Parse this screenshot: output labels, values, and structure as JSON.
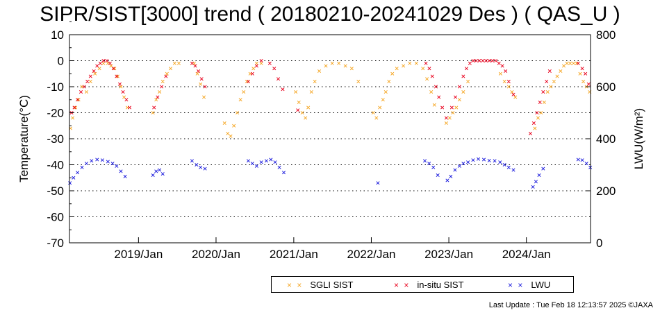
{
  "title": "SIPR/SIST[3000] trend ( 20180210-20241029 Des ) ( QAS_U )",
  "footer": "Last Update : Tue Feb 18 12:13:57 2025  ©JAXA",
  "colors": {
    "sgli": "#f5a623",
    "insitu": "#e8001c",
    "lwu": "#1a1adc",
    "grid": "#000000"
  },
  "chart_data": {
    "type": "scatter",
    "title": "SIPR/SIST[3000] trend ( 20180210-20241029 Des ) ( QAS_U )",
    "xlabel": "",
    "ylabel": "Temperature(°C)",
    "y2label": "LWU(W/m²)",
    "xlim": [
      "2018-02-10",
      "2024-10-29"
    ],
    "ylim": [
      -70,
      10
    ],
    "y2lim": [
      0,
      800
    ],
    "grid": "dotted horizontal",
    "legend_position": "bottom-right",
    "x_ticks": [
      "2019/Jan",
      "2020/Jan",
      "2021/Jan",
      "2022/Jan",
      "2023/Jan",
      "2024/Jan"
    ],
    "x_tick_dates": [
      "2019-01-01",
      "2020-01-01",
      "2021-01-01",
      "2022-01-01",
      "2023-01-01",
      "2024-01-01"
    ],
    "y_ticks": [
      10,
      0,
      -10,
      -20,
      -30,
      -40,
      -50,
      -60,
      -70
    ],
    "y2_ticks": [
      800,
      600,
      400,
      200,
      0
    ],
    "series": [
      {
        "name": "SGLI SIST",
        "axis": "left",
        "marker": "x",
        "x": [
          "2018-02-15",
          "2018-02-25",
          "2018-03-10",
          "2018-03-25",
          "2018-04-10",
          "2018-05-01",
          "2018-05-20",
          "2018-06-10",
          "2018-07-01",
          "2018-07-20",
          "2018-08-10",
          "2018-08-25",
          "2018-09-10",
          "2018-09-25",
          "2018-10-10",
          "2018-10-25",
          "2018-11-10",
          "2019-03-10",
          "2019-03-25",
          "2019-04-10",
          "2019-04-25",
          "2019-05-15",
          "2019-06-01",
          "2019-06-20",
          "2019-07-10",
          "2019-09-20",
          "2019-10-05",
          "2019-10-20",
          "2019-11-05",
          "2020-02-10",
          "2020-02-25",
          "2020-03-10",
          "2020-03-25",
          "2020-04-10",
          "2020-04-25",
          "2020-05-10",
          "2020-05-25",
          "2020-06-10",
          "2020-06-25",
          "2020-07-10",
          "2020-08-01",
          "2021-01-10",
          "2021-01-25",
          "2021-02-10",
          "2021-02-25",
          "2021-03-10",
          "2021-03-25",
          "2021-04-10",
          "2021-05-01",
          "2021-06-01",
          "2021-07-01",
          "2021-08-01",
          "2021-09-01",
          "2021-10-01",
          "2021-11-01",
          "2022-01-10",
          "2022-01-25",
          "2022-02-10",
          "2022-02-25",
          "2022-03-10",
          "2022-03-25",
          "2022-04-10",
          "2022-05-01",
          "2022-06-01",
          "2022-07-01",
          "2022-08-01",
          "2022-09-01",
          "2022-09-20",
          "2022-10-10",
          "2022-10-25",
          "2022-12-20",
          "2023-01-05",
          "2023-01-20",
          "2023-02-05",
          "2023-02-20",
          "2023-03-10",
          "2023-04-01",
          "2023-09-01",
          "2023-09-20",
          "2023-10-10",
          "2023-10-25",
          "2023-11-10",
          "2024-02-10",
          "2024-02-25",
          "2024-03-10",
          "2024-03-25",
          "2024-04-10",
          "2024-04-25",
          "2024-05-10",
          "2024-05-25",
          "2024-06-10",
          "2024-06-25",
          "2024-07-10",
          "2024-07-25",
          "2024-08-10",
          "2024-08-25",
          "2024-09-10",
          "2024-09-25",
          "2024-10-10",
          "2024-10-25"
        ],
        "y": [
          -26,
          -22,
          -18,
          -15,
          -10,
          -12,
          -8,
          -5,
          -3,
          -1,
          -1,
          -2,
          -3,
          -6,
          -10,
          -14,
          -18,
          -20,
          -15,
          -12,
          -8,
          -5,
          -3,
          -1,
          -1,
          -1,
          -5,
          -9,
          -14,
          -24,
          -28,
          -29,
          -25,
          -20,
          -15,
          -12,
          -8,
          -5,
          -3,
          -1,
          -1,
          -12,
          -16,
          -20,
          -22,
          -18,
          -12,
          -8,
          -4,
          -2,
          -1,
          -1,
          -2,
          -3,
          -8,
          -20,
          -22,
          -18,
          -15,
          -12,
          -8,
          -5,
          -3,
          -2,
          -1,
          -1,
          -3,
          -7,
          -12,
          -17,
          -24,
          -22,
          -20,
          -18,
          -15,
          -12,
          -8,
          -5,
          -8,
          -10,
          -12,
          -14,
          -26,
          -22,
          -20,
          -16,
          -12,
          -10,
          -8,
          -6,
          -4,
          -2,
          -1,
          -1,
          -1,
          -1,
          -5,
          -8,
          -10,
          -12
        ]
      },
      {
        "name": "in-situ SIST",
        "axis": "left",
        "marker": "x",
        "x": [
          "2018-02-20",
          "2018-03-05",
          "2018-03-20",
          "2018-04-05",
          "2018-04-20",
          "2018-05-05",
          "2018-05-20",
          "2018-06-05",
          "2018-06-20",
          "2018-07-05",
          "2018-07-20",
          "2018-08-05",
          "2018-08-20",
          "2018-09-05",
          "2018-09-20",
          "2018-10-05",
          "2018-10-20",
          "2018-11-05",
          "2018-11-20",
          "2019-03-15",
          "2019-04-01",
          "2019-04-20",
          "2019-05-10",
          "2019-09-10",
          "2019-09-25",
          "2019-10-10",
          "2019-10-25",
          "2019-11-10",
          "2020-06-01",
          "2020-06-20",
          "2020-07-10",
          "2020-08-01",
          "2020-09-10",
          "2020-10-01",
          "2020-10-20",
          "2020-11-10",
          "2021-01-20",
          "2022-09-15",
          "2022-10-01",
          "2022-10-15",
          "2022-11-01",
          "2022-11-15",
          "2022-12-01",
          "2022-12-20",
          "2023-01-15",
          "2023-02-01",
          "2023-02-20",
          "2023-03-10",
          "2023-03-25",
          "2023-04-10",
          "2023-04-25",
          "2023-05-10",
          "2023-05-25",
          "2023-06-10",
          "2023-06-25",
          "2023-07-10",
          "2023-07-25",
          "2023-08-10",
          "2023-08-25",
          "2023-09-10",
          "2023-09-25",
          "2023-10-10",
          "2023-11-01",
          "2024-01-20",
          "2024-02-05",
          "2024-02-20",
          "2024-03-05",
          "2024-03-20",
          "2024-04-05",
          "2024-04-20",
          "2024-09-01",
          "2024-09-20",
          "2024-10-05",
          "2024-10-20"
        ],
        "y": [
          -20,
          -18,
          -15,
          -12,
          -10,
          -8,
          -6,
          -4,
          -2,
          -1,
          0,
          0,
          -1,
          -3,
          -6,
          -9,
          -12,
          -15,
          -18,
          -18,
          -14,
          -10,
          -6,
          -1,
          -2,
          -4,
          -7,
          -10,
          -8,
          -5,
          -2,
          0,
          -1,
          -3,
          -7,
          -11,
          -19,
          -1,
          -3,
          -6,
          -10,
          -14,
          -18,
          -22,
          -18,
          -14,
          -10,
          -6,
          -3,
          -1,
          0,
          0,
          0,
          0,
          0,
          0,
          0,
          0,
          -1,
          -2,
          -4,
          -8,
          -13,
          -28,
          -24,
          -20,
          -16,
          -12,
          -8,
          -4,
          -1,
          -3,
          -5,
          -9
        ]
      },
      {
        "name": "LWU",
        "axis": "right",
        "marker": "x",
        "x": [
          "2018-02-12",
          "2018-03-01",
          "2018-03-20",
          "2018-04-10",
          "2018-05-01",
          "2018-05-25",
          "2018-06-20",
          "2018-07-15",
          "2018-08-10",
          "2018-09-01",
          "2018-09-20",
          "2018-10-10",
          "2018-10-30",
          "2019-03-10",
          "2019-03-25",
          "2019-04-10",
          "2019-04-25",
          "2019-09-10",
          "2019-10-01",
          "2019-10-20",
          "2019-11-10",
          "2020-06-01",
          "2020-06-20",
          "2020-07-10",
          "2020-08-01",
          "2020-08-25",
          "2020-09-15",
          "2020-10-05",
          "2020-10-25",
          "2020-11-15",
          "2022-02-01",
          "2022-09-10",
          "2022-09-30",
          "2022-10-20",
          "2022-11-10",
          "2022-12-25",
          "2023-01-10",
          "2023-01-30",
          "2023-02-20",
          "2023-03-10",
          "2023-04-01",
          "2023-04-25",
          "2023-05-20",
          "2023-06-15",
          "2023-07-10",
          "2023-08-05",
          "2023-08-30",
          "2023-09-20",
          "2023-10-10",
          "2023-11-01",
          "2024-02-01",
          "2024-02-15",
          "2024-03-01",
          "2024-03-20",
          "2024-09-01",
          "2024-09-20",
          "2024-10-10",
          "2024-10-28"
        ],
        "y": [
          230,
          250,
          270,
          290,
          305,
          315,
          320,
          318,
          312,
          305,
          295,
          275,
          255,
          260,
          275,
          280,
          265,
          315,
          300,
          290,
          285,
          315,
          305,
          295,
          310,
          315,
          320,
          310,
          290,
          270,
          230,
          315,
          305,
          290,
          260,
          240,
          255,
          280,
          295,
          305,
          310,
          318,
          322,
          320,
          316,
          315,
          310,
          300,
          290,
          280,
          215,
          235,
          260,
          285,
          320,
          318,
          305,
          290
        ]
      }
    ]
  }
}
